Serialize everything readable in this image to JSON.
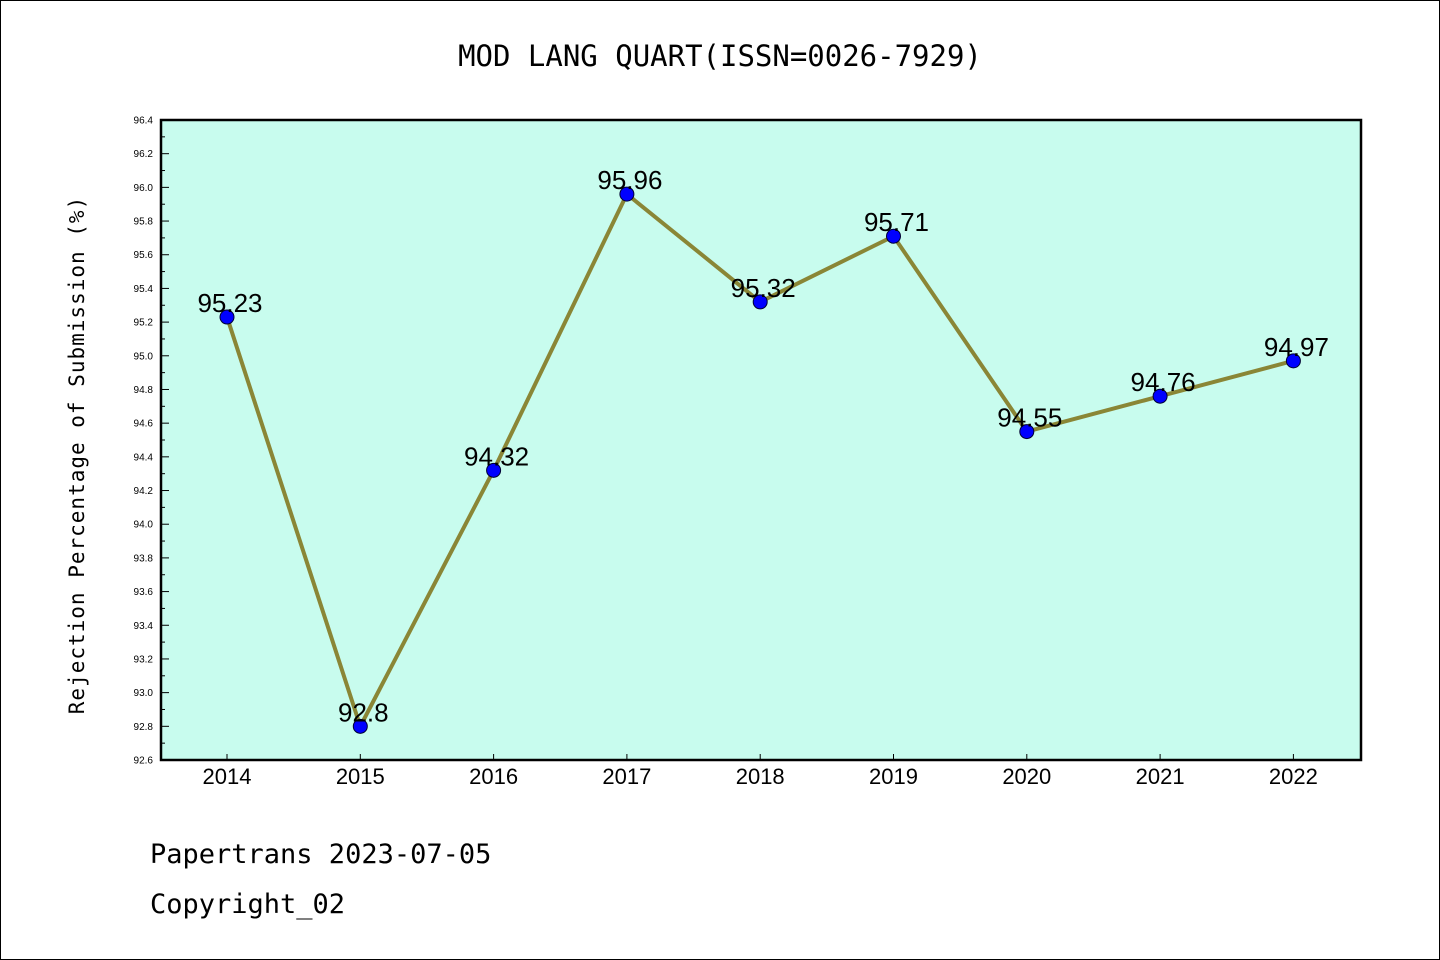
{
  "chart_data": {
    "type": "line",
    "title": "MOD LANG QUART(ISSN=0026-7929)",
    "ylabel": "Rejection Percentage of Submission (%)",
    "xlabel": "",
    "categories": [
      "2014",
      "2015",
      "2016",
      "2017",
      "2018",
      "2019",
      "2020",
      "2021",
      "2022"
    ],
    "values": [
      95.23,
      92.8,
      94.32,
      95.96,
      95.32,
      95.71,
      94.55,
      94.76,
      94.97
    ],
    "data_labels": [
      "95.23",
      "92.8",
      "94.32",
      "95.96",
      "95.32",
      "95.71",
      "94.55",
      "94.76",
      "94.97"
    ],
    "ylim": [
      92.6,
      96.4
    ],
    "yticks": [
      "92.6",
      "92.8",
      "93.0",
      "93.2",
      "93.4",
      "93.6",
      "93.8",
      "94.0",
      "94.2",
      "94.4",
      "94.6",
      "94.8",
      "95.0",
      "95.2",
      "95.4",
      "95.6",
      "95.8",
      "96.0",
      "96.2",
      "96.4"
    ],
    "grid": false,
    "colors": {
      "plot_background": "#c8fcee",
      "line": "#8a8636",
      "marker": "#0000ff"
    }
  },
  "footer": {
    "line1": "Papertrans 2023-07-05",
    "line2": "Copyright_02"
  }
}
